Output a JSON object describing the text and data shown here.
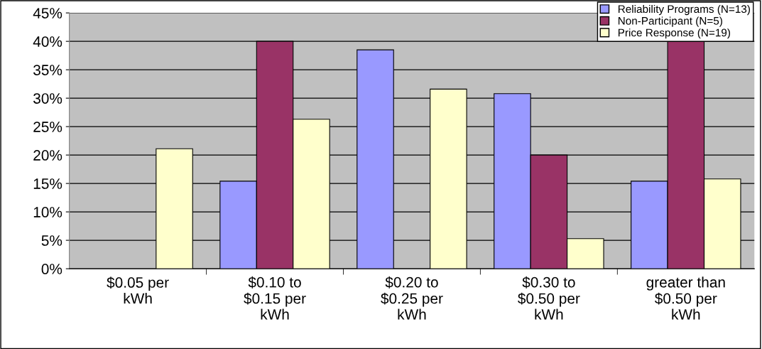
{
  "chart_data": {
    "type": "bar",
    "categories": [
      "$0.05 per\nkWh",
      "$0.10 to\n$0.15 per\nkWh",
      "$0.20 to\n$0.25 per\nkWh",
      "$0.30 to\n$0.50 per\nkWh",
      "greater than\n$0.50 per\nkWh"
    ],
    "series": [
      {
        "name": "Reliability Programs (N=13)",
        "color": "#9999ff",
        "values": [
          null,
          15.4,
          38.5,
          30.8,
          15.4
        ]
      },
      {
        "name": "Non-Participant (N=5)",
        "color": "#993366",
        "values": [
          null,
          40,
          null,
          20,
          40
        ]
      },
      {
        "name": "Price Response (N=19)",
        "color": "#ffffcc",
        "values": [
          21.1,
          26.3,
          31.6,
          5.3,
          15.8
        ]
      }
    ],
    "ylim": [
      0,
      45
    ],
    "yticks": [
      {
        "value": 0,
        "label": "0%"
      },
      {
        "value": 5,
        "label": "5%"
      },
      {
        "value": 10,
        "label": "10%"
      },
      {
        "value": 15,
        "label": "15%"
      },
      {
        "value": 20,
        "label": "20%"
      },
      {
        "value": 25,
        "label": "25%"
      },
      {
        "value": 30,
        "label": "30%"
      },
      {
        "value": 35,
        "label": "35%"
      },
      {
        "value": 40,
        "label": "40%"
      },
      {
        "value": 45,
        "label": "45%"
      }
    ],
    "grid": "y",
    "legend": "top right"
  }
}
